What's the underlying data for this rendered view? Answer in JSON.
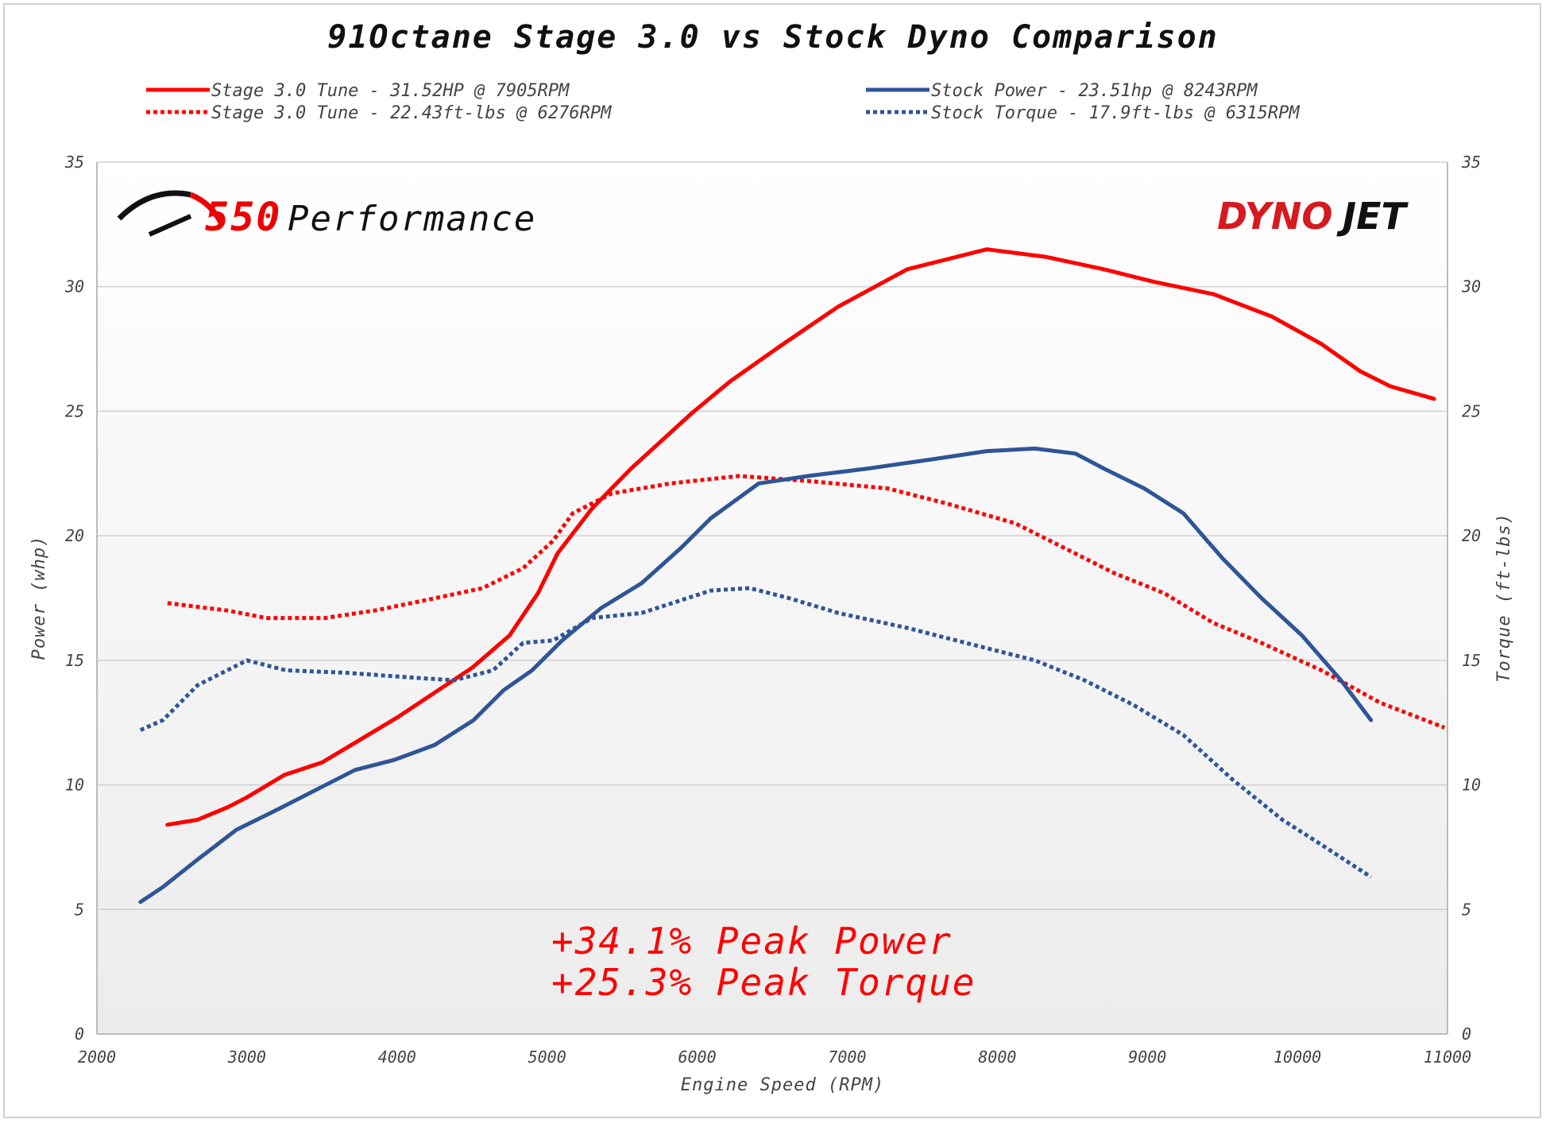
{
  "chart_data": {
    "type": "line",
    "title": "91Octane Stage 3.0 vs Stock Dyno Comparison",
    "xlabel": "Engine Speed (RPM)",
    "ylabel": "Power (whp)",
    "y2label": "Torque (ft-lbs)",
    "xlim": [
      2000,
      11000
    ],
    "ylim": [
      0,
      35
    ],
    "y2lim": [
      0,
      35
    ],
    "xticks": [
      2000,
      3000,
      4000,
      5000,
      6000,
      7000,
      8000,
      9000,
      10000,
      11000
    ],
    "yticks": [
      0,
      5,
      10,
      15,
      20,
      25,
      30,
      35
    ],
    "grid": "horizontal",
    "legend_position": "top",
    "series": [
      {
        "name": "Stage 3.0 Tune - 31.52HP @ 7905RPM",
        "color": "#ff0000",
        "style": "solid",
        "axis": "left",
        "x": [
          2470,
          2670,
          2870,
          3000,
          3250,
          3500,
          3750,
          4000,
          4250,
          4500,
          4750,
          4940,
          5070,
          5300,
          5560,
          5960,
          6220,
          6550,
          6940,
          7400,
          7930,
          8320,
          8710,
          9040,
          9440,
          9830,
          10160,
          10420,
          10620,
          10910
        ],
        "y": [
          8.4,
          8.6,
          9.1,
          9.5,
          10.4,
          10.9,
          11.8,
          12.7,
          13.7,
          14.7,
          16.0,
          17.7,
          19.3,
          21.1,
          22.7,
          24.9,
          26.2,
          27.6,
          29.2,
          30.7,
          31.5,
          31.2,
          30.7,
          30.2,
          29.7,
          28.8,
          27.7,
          26.6,
          26.0,
          25.5
        ]
      },
      {
        "name": "Stage 3.0 Tune - 22.43ft-lbs @ 6276RPM",
        "color": "#ff0000",
        "style": "dotted",
        "axis": "right",
        "x": [
          2470,
          2870,
          3130,
          3520,
          3850,
          4180,
          4570,
          4840,
          5040,
          5170,
          5430,
          5820,
          6280,
          6740,
          7270,
          7660,
          8120,
          8450,
          8780,
          9110,
          9440,
          9760,
          10160,
          10550,
          10980
        ],
        "y": [
          17.3,
          17.0,
          16.7,
          16.7,
          17.0,
          17.4,
          17.9,
          18.7,
          19.8,
          20.9,
          21.7,
          22.1,
          22.4,
          22.2,
          21.9,
          21.3,
          20.5,
          19.5,
          18.5,
          17.7,
          16.5,
          15.7,
          14.6,
          13.3,
          12.3
        ]
      },
      {
        "name": "Stock Power - 23.51hp @ 8243RPM",
        "color": "#2f5597",
        "style": "solid",
        "axis": "left",
        "x": [
          2290,
          2440,
          2670,
          2930,
          3200,
          3460,
          3720,
          3980,
          4250,
          4510,
          4710,
          4900,
          5100,
          5360,
          5630,
          5890,
          6090,
          6410,
          6740,
          7140,
          7600,
          7930,
          8250,
          8520,
          8710,
          8980,
          9240,
          9500,
          9760,
          10030,
          10290,
          10490
        ],
        "y": [
          5.3,
          5.9,
          7.0,
          8.2,
          9.0,
          9.8,
          10.6,
          11.0,
          11.6,
          12.6,
          13.8,
          14.6,
          15.8,
          17.1,
          18.1,
          19.5,
          20.7,
          22.1,
          22.4,
          22.7,
          23.1,
          23.4,
          23.5,
          23.3,
          22.7,
          21.9,
          20.9,
          19.1,
          17.5,
          16.0,
          14.2,
          12.6
        ]
      },
      {
        "name": "Stock Torque - 17.9ft-lbs @ 6315RPM",
        "color": "#2f5597",
        "style": "dotted",
        "axis": "right",
        "x": [
          2290,
          2440,
          2670,
          3000,
          3260,
          3660,
          4120,
          4380,
          4640,
          4840,
          5040,
          5300,
          5630,
          6090,
          6350,
          6610,
          6940,
          7400,
          7790,
          8250,
          8580,
          8910,
          9240,
          9570,
          9900,
          10160,
          10490
        ],
        "y": [
          12.2,
          12.6,
          14.0,
          15.0,
          14.6,
          14.5,
          14.3,
          14.2,
          14.6,
          15.7,
          15.8,
          16.7,
          16.9,
          17.8,
          17.9,
          17.5,
          16.9,
          16.3,
          15.7,
          15.0,
          14.2,
          13.2,
          12.0,
          10.2,
          8.6,
          7.6,
          6.3
        ]
      }
    ],
    "annotations": [
      "+34.1% Peak Power",
      "+25.3% Peak Torque"
    ]
  },
  "logos": {
    "left": "550Performance",
    "right": "DYNOJET"
  },
  "colors": {
    "stage3": "#ff0000",
    "stock": "#2f5597",
    "grid": "#d0d0d0"
  }
}
